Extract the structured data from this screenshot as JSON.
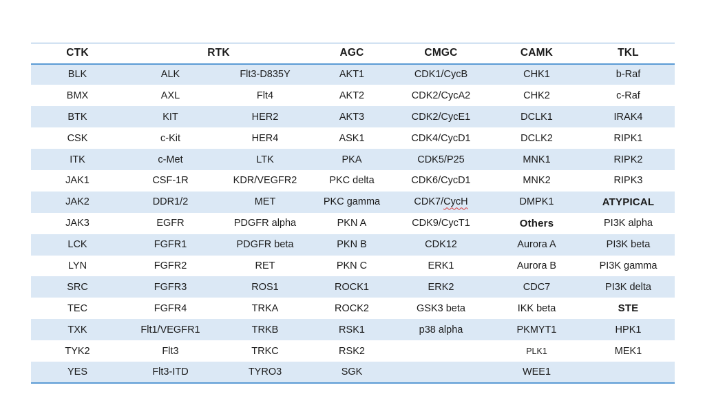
{
  "page": {
    "background": "#ffffff"
  },
  "table": {
    "style": {
      "band_color": "#dbe8f5",
      "rule_color": "#5b9bd5",
      "rule_thin_color": "#7fadd9",
      "text_color": "#1b1b1b",
      "squiggle_color": "#d93a3a"
    },
    "column_groups": [
      {
        "label": "CTK",
        "span": 1
      },
      {
        "label": "RTK",
        "span": 2
      },
      {
        "label": "AGC",
        "span": 1
      },
      {
        "label": "CMGC",
        "span": 1
      },
      {
        "label": "CAMK",
        "span": 1
      },
      {
        "label": "TKL",
        "span": 1
      }
    ],
    "rows": [
      [
        "BLK",
        "ALK",
        "Flt3-D835Y",
        "AKT1",
        "CDK1/CycB",
        "CHK1",
        "b-Raf"
      ],
      [
        "BMX",
        "AXL",
        "Flt4",
        "AKT2",
        "CDK2/CycA2",
        "CHK2",
        "c-Raf"
      ],
      [
        "BTK",
        "KIT",
        "HER2",
        "AKT3",
        "CDK2/CycE1",
        "DCLK1",
        "IRAK4"
      ],
      [
        "CSK",
        "c-Kit",
        "HER4",
        "ASK1",
        "CDK4/CycD1",
        "DCLK2",
        "RIPK1"
      ],
      [
        "ITK",
        "c-Met",
        "LTK",
        "PKA",
        "CDK5/P25",
        "MNK1",
        "RIPK2"
      ],
      [
        "JAK1",
        "CSF-1R",
        "KDR/VEGFR2",
        "PKC delta",
        "CDK6/CycD1",
        "MNK2",
        "RIPK3"
      ],
      [
        "JAK2",
        "DDR1/2",
        "MET",
        "PKC gamma",
        {
          "text": "CDK7/CycH",
          "wavy": "CycH"
        },
        "DMPK1",
        {
          "text": "ATYPICAL",
          "bold": true
        }
      ],
      [
        "JAK3",
        "EGFR",
        "PDGFR alpha",
        "PKN A",
        "CDK9/CycT1",
        {
          "text": "Others",
          "bold": true
        },
        "PI3K alpha"
      ],
      [
        "LCK",
        "FGFR1",
        "PDGFR beta",
        "PKN B",
        "CDK12",
        "Aurora A",
        "PI3K beta"
      ],
      [
        "LYN",
        "FGFR2",
        "RET",
        "PKN C",
        "ERK1",
        "Aurora B",
        "PI3K gamma"
      ],
      [
        "SRC",
        "FGFR3",
        "ROS1",
        "ROCK1",
        "ERK2",
        "CDC7",
        "PI3K delta"
      ],
      [
        "TEC",
        "FGFR4",
        "TRKA",
        "ROCK2",
        "GSK3 beta",
        "IKK beta",
        {
          "text": "STE",
          "bold": true
        }
      ],
      [
        "TXK",
        "Flt1/VEGFR1",
        "TRKB",
        "RSK1",
        "p38 alpha",
        "PKMYT1",
        "HPK1"
      ],
      [
        "TYK2",
        "Flt3",
        "TRKC",
        "RSK2",
        "",
        {
          "text": "PLK1",
          "small": true
        },
        "MEK1"
      ],
      [
        "YES",
        "Flt3-ITD",
        "TYRO3",
        "SGK",
        "",
        "WEE1",
        ""
      ]
    ]
  }
}
